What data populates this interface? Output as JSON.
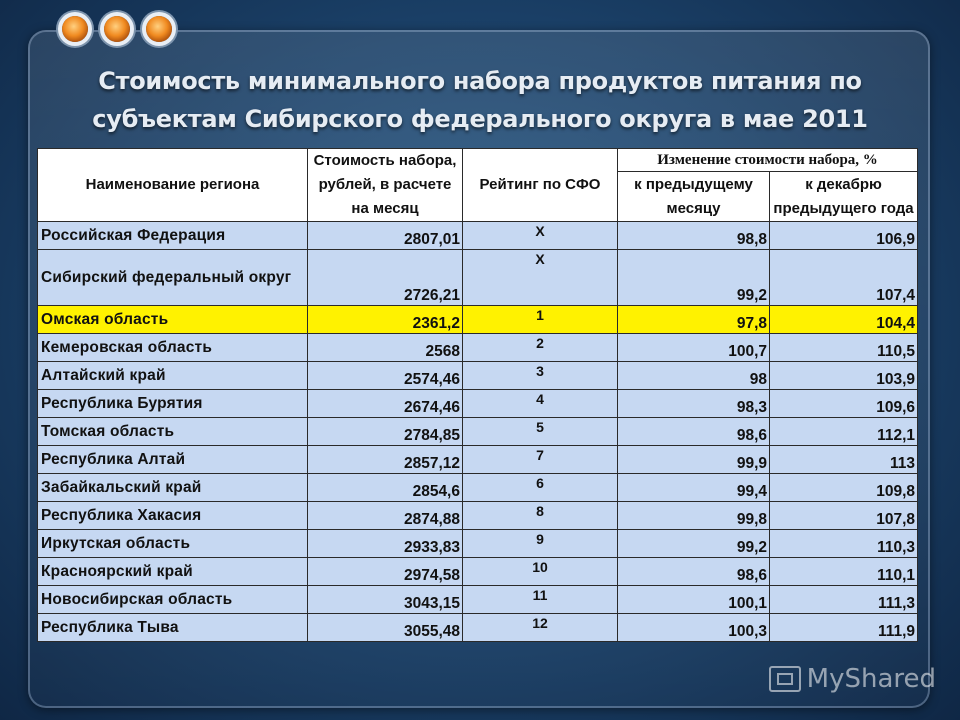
{
  "title": "Стоимость минимального набора продуктов питания по субъектам Сибирского федерального округа в мае 2011 года",
  "table": {
    "headers": {
      "name": "Наименование региона",
      "cost": "Стоимость набора, рублей, в расчете на месяц",
      "rank": "Рейтинг по СФО",
      "change": "Изменение стоимости набора, %",
      "prev_month": "к предыдущему месяцу",
      "prev_dec": "к декабрю предыдущего года"
    },
    "rows": [
      {
        "name": "Российская Федерация",
        "cost": "2807,01",
        "rank": "Х",
        "prev_month": "98,8",
        "prev_dec": "106,9"
      },
      {
        "name": "Сибирский федеральный округ",
        "cost": "2726,21",
        "rank": "Х",
        "prev_month": "99,2",
        "prev_dec": "107,4"
      },
      {
        "name": "Омская область",
        "cost": "2361,2",
        "rank": "1",
        "prev_month": "97,8",
        "prev_dec": "104,4"
      },
      {
        "name": "Кемеровская область",
        "cost": "2568",
        "rank": "2",
        "prev_month": "100,7",
        "prev_dec": "110,5"
      },
      {
        "name": "Алтайский край",
        "cost": "2574,46",
        "rank": "3",
        "prev_month": "98",
        "prev_dec": "103,9"
      },
      {
        "name": "Республика Бурятия",
        "cost": "2674,46",
        "rank": "4",
        "prev_month": "98,3",
        "prev_dec": "109,6"
      },
      {
        "name": "Томская область",
        "cost": "2784,85",
        "rank": "5",
        "prev_month": "98,6",
        "prev_dec": "112,1"
      },
      {
        "name": "Республика Алтай",
        "cost": "2857,12",
        "rank": "7",
        "prev_month": "99,9",
        "prev_dec": "113"
      },
      {
        "name": "Забайкальский край",
        "cost": "2854,6",
        "rank": "6",
        "prev_month": "99,4",
        "prev_dec": "109,8"
      },
      {
        "name": "Республика Хакасия",
        "cost": "2874,88",
        "rank": "8",
        "prev_month": "99,8",
        "prev_dec": "107,8"
      },
      {
        "name": "Иркутская область",
        "cost": "2933,83",
        "rank": "9",
        "prev_month": "99,2",
        "prev_dec": "110,3"
      },
      {
        "name": "Красноярский край",
        "cost": "2974,58",
        "rank": "10",
        "prev_month": "98,6",
        "prev_dec": "110,1"
      },
      {
        "name": "Новосибирская область",
        "cost": "3043,15",
        "rank": "11",
        "prev_month": "100,1",
        "prev_dec": "111,3"
      },
      {
        "name": "Республика Тыва",
        "cost": "3055,48",
        "rank": "12",
        "prev_month": "100,3",
        "prev_dec": "111,9"
      }
    ]
  },
  "highlight_color": "#fff200",
  "row_color": "#c6d8f2",
  "watermark": "MyShared"
}
